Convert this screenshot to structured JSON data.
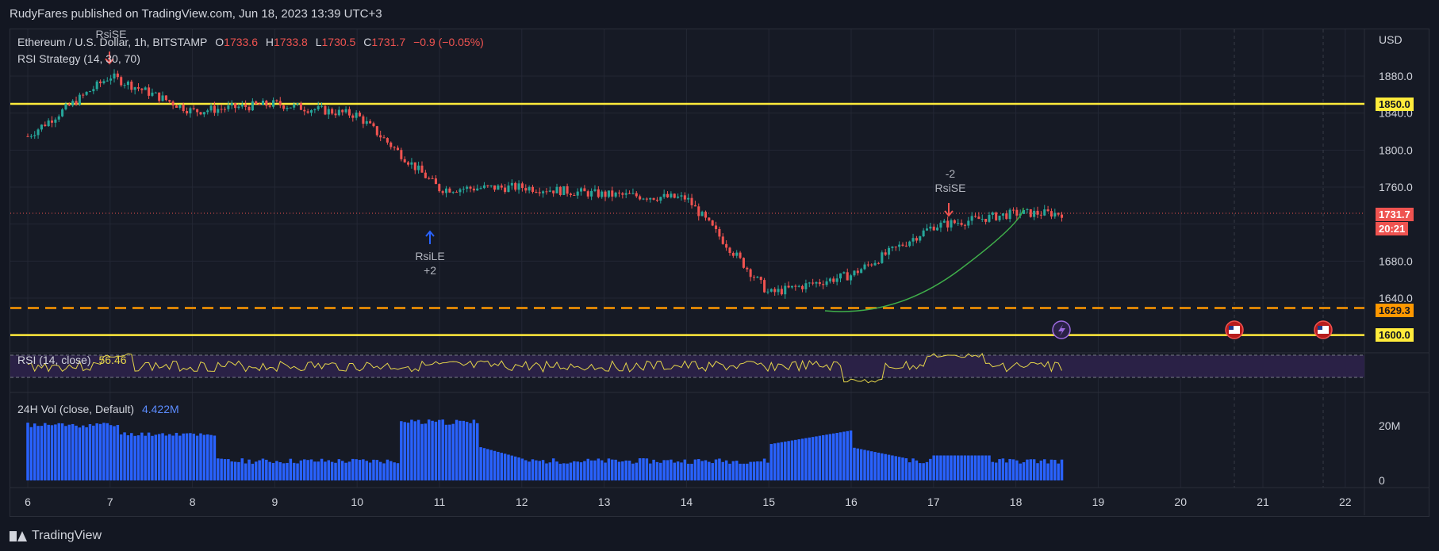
{
  "header": {
    "published": "RudyFares published on TradingView.com, Jun 18, 2023 13:39 UTC+3"
  },
  "legend": {
    "symbol": "Ethereum / U.S. Dollar, 1h, BITSTAMP",
    "open_label": "O",
    "open": "1733.6",
    "high_label": "H",
    "high": "1733.8",
    "low_label": "L",
    "low": "1730.5",
    "close_label": "C",
    "close": "1731.7",
    "change": "−0.9 (−0.05%)",
    "strategy": "RSI Strategy (14, 30, 70)",
    "rsi_label": "RSI (14, close)",
    "rsi_value": "56.46",
    "vol_label": "24H Vol (close, Default)",
    "vol_value": "4.422M"
  },
  "axis": {
    "currency": "USD",
    "price_ticks": [
      "1880.0",
      "1840.0",
      "1800.0",
      "1760.0",
      "1680.0",
      "1640.0"
    ],
    "vol_ticks": [
      "20M",
      "0"
    ],
    "date_ticks": [
      "6",
      "7",
      "8",
      "9",
      "10",
      "11",
      "12",
      "13",
      "14",
      "15",
      "16",
      "17",
      "18",
      "19",
      "20",
      "21",
      "22"
    ]
  },
  "badges": {
    "line_1850": "1850.0",
    "price": "1731.7",
    "countdown": "20:21",
    "line_1629": "1629.3",
    "line_1600": "1600.0"
  },
  "signals": {
    "top_left": "RsiSE",
    "long_label": "RsiLE",
    "long_qty": "+2",
    "short_qty": "-2",
    "short_label": "RsiSE"
  },
  "brand": {
    "name": "TradingView"
  },
  "colors": {
    "up": "#26a69a",
    "down": "#ef5350",
    "yellow": "#ffeb3b",
    "orange": "#ff9800",
    "rsi": "#e5d54a",
    "vol": "#2962ff",
    "curve": "#3fae4a"
  },
  "chart_data": {
    "type": "line",
    "title": "Ethereum / U.S. Dollar, 1h, BITSTAMP",
    "x": [
      "6",
      "7",
      "8",
      "9",
      "10",
      "11",
      "12",
      "13",
      "14",
      "15",
      "16",
      "17",
      "18"
    ],
    "series": [
      {
        "name": "",
        "values": [
          1815,
          1880,
          1842,
          1850,
          1838,
          1758,
          1760,
          1752,
          1748,
          1645,
          1665,
          1718,
          1731.7
        ]
      }
    ],
    "horizontal_levels": [
      1850.0,
      1629.3,
      1600.0
    ],
    "ylim": [
      1595,
      1905
    ],
    "y_axis_side": "right",
    "grid": true,
    "legend_position": "top-left",
    "rsi": {
      "params": "14, close",
      "last": 56.46,
      "upper": 70,
      "lower": 30
    },
    "volume": {
      "unit": "M",
      "last": 4.422
    }
  }
}
